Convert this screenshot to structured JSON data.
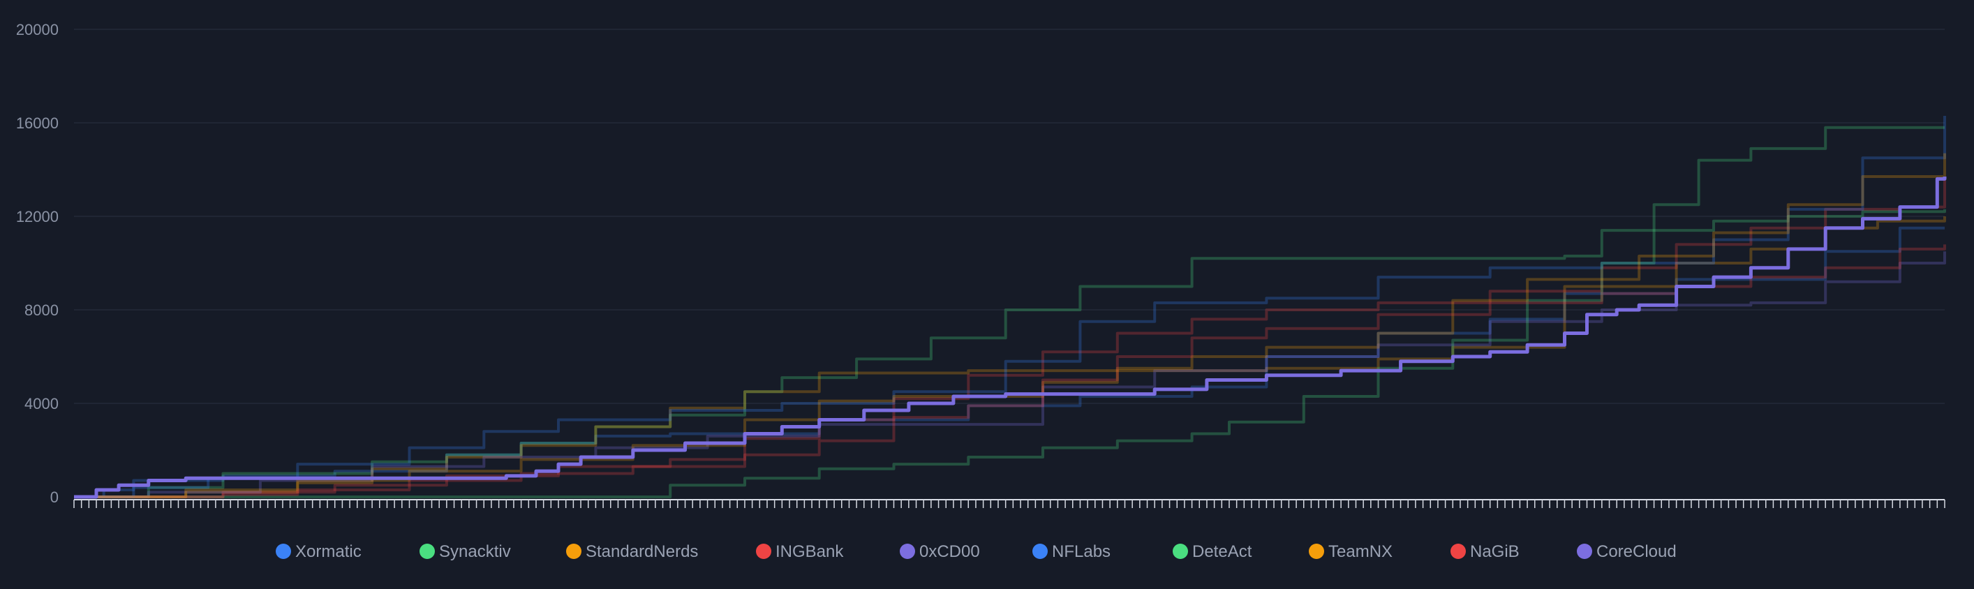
{
  "chart_data": {
    "type": "line",
    "title": "",
    "xlabel": "",
    "ylabel": "",
    "ylim": [
      0,
      20000
    ],
    "yticks": [
      0,
      4000,
      8000,
      12000,
      16000,
      20000
    ],
    "x_points": 252,
    "grid": "horizontal",
    "legend_position": "bottom",
    "highlighted_series": "CoreCloud",
    "series": [
      {
        "name": "Xormatic",
        "color": "#3b82f6",
        "points": [
          [
            0,
            0
          ],
          [
            4,
            300
          ],
          [
            8,
            700
          ],
          [
            20,
            900
          ],
          [
            35,
            1100
          ],
          [
            50,
            1800
          ],
          [
            60,
            2300
          ],
          [
            70,
            2600
          ],
          [
            80,
            2700
          ],
          [
            100,
            3300
          ],
          [
            120,
            3900
          ],
          [
            135,
            4300
          ],
          [
            150,
            4700
          ],
          [
            160,
            6000
          ],
          [
            175,
            7000
          ],
          [
            190,
            7600
          ],
          [
            200,
            8700
          ],
          [
            215,
            9300
          ],
          [
            235,
            10500
          ],
          [
            245,
            11500
          ],
          [
            251,
            11500
          ]
        ]
      },
      {
        "name": "Synacktiv",
        "color": "#4ade80",
        "points": [
          [
            0,
            0
          ],
          [
            10,
            400
          ],
          [
            20,
            1000
          ],
          [
            40,
            1500
          ],
          [
            50,
            1800
          ],
          [
            60,
            2300
          ],
          [
            70,
            3000
          ],
          [
            80,
            3500
          ],
          [
            90,
            4500
          ],
          [
            95,
            5100
          ],
          [
            105,
            5900
          ],
          [
            115,
            6800
          ],
          [
            125,
            8000
          ],
          [
            135,
            9000
          ],
          [
            150,
            10200
          ],
          [
            185,
            10200
          ],
          [
            200,
            10300
          ],
          [
            205,
            11400
          ],
          [
            220,
            11800
          ],
          [
            230,
            12000
          ],
          [
            240,
            12200
          ],
          [
            251,
            12300
          ]
        ]
      },
      {
        "name": "StandardNerds",
        "color": "#f59e0b",
        "points": [
          [
            0,
            0
          ],
          [
            15,
            200
          ],
          [
            30,
            600
          ],
          [
            40,
            1200
          ],
          [
            50,
            1700
          ],
          [
            60,
            2200
          ],
          [
            70,
            3000
          ],
          [
            80,
            3800
          ],
          [
            90,
            4500
          ],
          [
            100,
            5300
          ],
          [
            120,
            5400
          ],
          [
            140,
            5400
          ],
          [
            160,
            5500
          ],
          [
            175,
            5900
          ],
          [
            185,
            6400
          ],
          [
            200,
            9000
          ],
          [
            215,
            10000
          ],
          [
            225,
            10600
          ],
          [
            235,
            11500
          ],
          [
            242,
            11800
          ],
          [
            251,
            12000
          ]
        ]
      },
      {
        "name": "INGBank",
        "color": "#ef4444",
        "points": [
          [
            0,
            0
          ],
          [
            20,
            200
          ],
          [
            35,
            500
          ],
          [
            50,
            900
          ],
          [
            65,
            1300
          ],
          [
            80,
            1600
          ],
          [
            90,
            2500
          ],
          [
            100,
            3300
          ],
          [
            110,
            4200
          ],
          [
            120,
            5200
          ],
          [
            130,
            6200
          ],
          [
            140,
            7000
          ],
          [
            150,
            7600
          ],
          [
            160,
            8000
          ],
          [
            175,
            8300
          ],
          [
            190,
            8800
          ],
          [
            205,
            9800
          ],
          [
            215,
            10800
          ],
          [
            225,
            11500
          ],
          [
            235,
            12300
          ],
          [
            245,
            12400
          ],
          [
            251,
            13700
          ]
        ]
      },
      {
        "name": "0xCD00",
        "color": "#7c6ee0",
        "points": [
          [
            0,
            0
          ],
          [
            10,
            200
          ],
          [
            25,
            700
          ],
          [
            40,
            1300
          ],
          [
            55,
            1700
          ],
          [
            70,
            2100
          ],
          [
            85,
            2600
          ],
          [
            100,
            3100
          ],
          [
            115,
            3100
          ],
          [
            130,
            4700
          ],
          [
            145,
            5400
          ],
          [
            160,
            6000
          ],
          [
            175,
            6500
          ],
          [
            190,
            7500
          ],
          [
            205,
            8000
          ],
          [
            215,
            8200
          ],
          [
            225,
            8300
          ],
          [
            235,
            9200
          ],
          [
            245,
            10000
          ],
          [
            251,
            10500
          ]
        ]
      },
      {
        "name": "NFLabs",
        "color": "#3b82f6",
        "points": [
          [
            0,
            0
          ],
          [
            8,
            400
          ],
          [
            18,
            800
          ],
          [
            30,
            1400
          ],
          [
            45,
            2100
          ],
          [
            55,
            2800
          ],
          [
            65,
            3300
          ],
          [
            80,
            3700
          ],
          [
            95,
            4000
          ],
          [
            110,
            4500
          ],
          [
            125,
            5800
          ],
          [
            135,
            7500
          ],
          [
            145,
            8300
          ],
          [
            160,
            8500
          ],
          [
            175,
            9400
          ],
          [
            190,
            9800
          ],
          [
            205,
            10000
          ],
          [
            220,
            11000
          ],
          [
            230,
            12300
          ],
          [
            240,
            14500
          ],
          [
            251,
            16300
          ]
        ]
      },
      {
        "name": "DeteAct",
        "color": "#4ade80",
        "points": [
          [
            0,
            0
          ],
          [
            30,
            0
          ],
          [
            50,
            0
          ],
          [
            60,
            0
          ],
          [
            70,
            0
          ],
          [
            80,
            500
          ],
          [
            90,
            800
          ],
          [
            100,
            1200
          ],
          [
            110,
            1400
          ],
          [
            120,
            1700
          ],
          [
            130,
            2100
          ],
          [
            140,
            2400
          ],
          [
            150,
            2700
          ],
          [
            155,
            3200
          ],
          [
            165,
            4300
          ],
          [
            175,
            5500
          ],
          [
            185,
            6700
          ],
          [
            195,
            8400
          ],
          [
            205,
            10000
          ],
          [
            212,
            12500
          ],
          [
            218,
            14400
          ],
          [
            225,
            14900
          ],
          [
            235,
            15800
          ],
          [
            251,
            15800
          ]
        ]
      },
      {
        "name": "TeamNX",
        "color": "#f59e0b",
        "points": [
          [
            0,
            0
          ],
          [
            15,
            300
          ],
          [
            30,
            700
          ],
          [
            45,
            1100
          ],
          [
            60,
            1600
          ],
          [
            75,
            2200
          ],
          [
            90,
            3300
          ],
          [
            100,
            4100
          ],
          [
            110,
            4300
          ],
          [
            120,
            4300
          ],
          [
            130,
            4900
          ],
          [
            140,
            5500
          ],
          [
            150,
            6000
          ],
          [
            160,
            6400
          ],
          [
            175,
            7000
          ],
          [
            185,
            8400
          ],
          [
            195,
            9300
          ],
          [
            210,
            10300
          ],
          [
            220,
            11300
          ],
          [
            230,
            12500
          ],
          [
            240,
            13700
          ],
          [
            251,
            14700
          ]
        ]
      },
      {
        "name": "NaGiB",
        "color": "#ef4444",
        "points": [
          [
            0,
            0
          ],
          [
            20,
            100
          ],
          [
            30,
            300
          ],
          [
            45,
            700
          ],
          [
            60,
            1000
          ],
          [
            75,
            1300
          ],
          [
            90,
            1800
          ],
          [
            100,
            2400
          ],
          [
            110,
            3400
          ],
          [
            120,
            3900
          ],
          [
            130,
            5000
          ],
          [
            140,
            6000
          ],
          [
            150,
            6800
          ],
          [
            160,
            7200
          ],
          [
            175,
            7800
          ],
          [
            190,
            8300
          ],
          [
            205,
            8700
          ],
          [
            215,
            9000
          ],
          [
            225,
            9400
          ],
          [
            235,
            9800
          ],
          [
            245,
            10600
          ],
          [
            251,
            10800
          ]
        ]
      },
      {
        "name": "CoreCloud",
        "color": "#7c6ee0",
        "points": [
          [
            0,
            0
          ],
          [
            3,
            300
          ],
          [
            6,
            500
          ],
          [
            10,
            700
          ],
          [
            15,
            800
          ],
          [
            20,
            800
          ],
          [
            30,
            800
          ],
          [
            45,
            800
          ],
          [
            50,
            800
          ],
          [
            55,
            800
          ],
          [
            58,
            900
          ],
          [
            62,
            1100
          ],
          [
            65,
            1400
          ],
          [
            68,
            1700
          ],
          [
            75,
            2000
          ],
          [
            82,
            2300
          ],
          [
            90,
            2700
          ],
          [
            95,
            3000
          ],
          [
            100,
            3300
          ],
          [
            106,
            3700
          ],
          [
            112,
            4000
          ],
          [
            118,
            4300
          ],
          [
            125,
            4400
          ],
          [
            135,
            4400
          ],
          [
            140,
            4400
          ],
          [
            145,
            4600
          ],
          [
            152,
            5000
          ],
          [
            160,
            5200
          ],
          [
            170,
            5400
          ],
          [
            178,
            5800
          ],
          [
            185,
            6000
          ],
          [
            190,
            6200
          ],
          [
            195,
            6500
          ],
          [
            200,
            7000
          ],
          [
            203,
            7800
          ],
          [
            207,
            8000
          ],
          [
            210,
            8200
          ],
          [
            215,
            9000
          ],
          [
            220,
            9400
          ],
          [
            225,
            9800
          ],
          [
            230,
            10600
          ],
          [
            235,
            11500
          ],
          [
            240,
            11900
          ],
          [
            245,
            12400
          ],
          [
            250,
            13600
          ],
          [
            251,
            13700
          ]
        ]
      }
    ]
  }
}
